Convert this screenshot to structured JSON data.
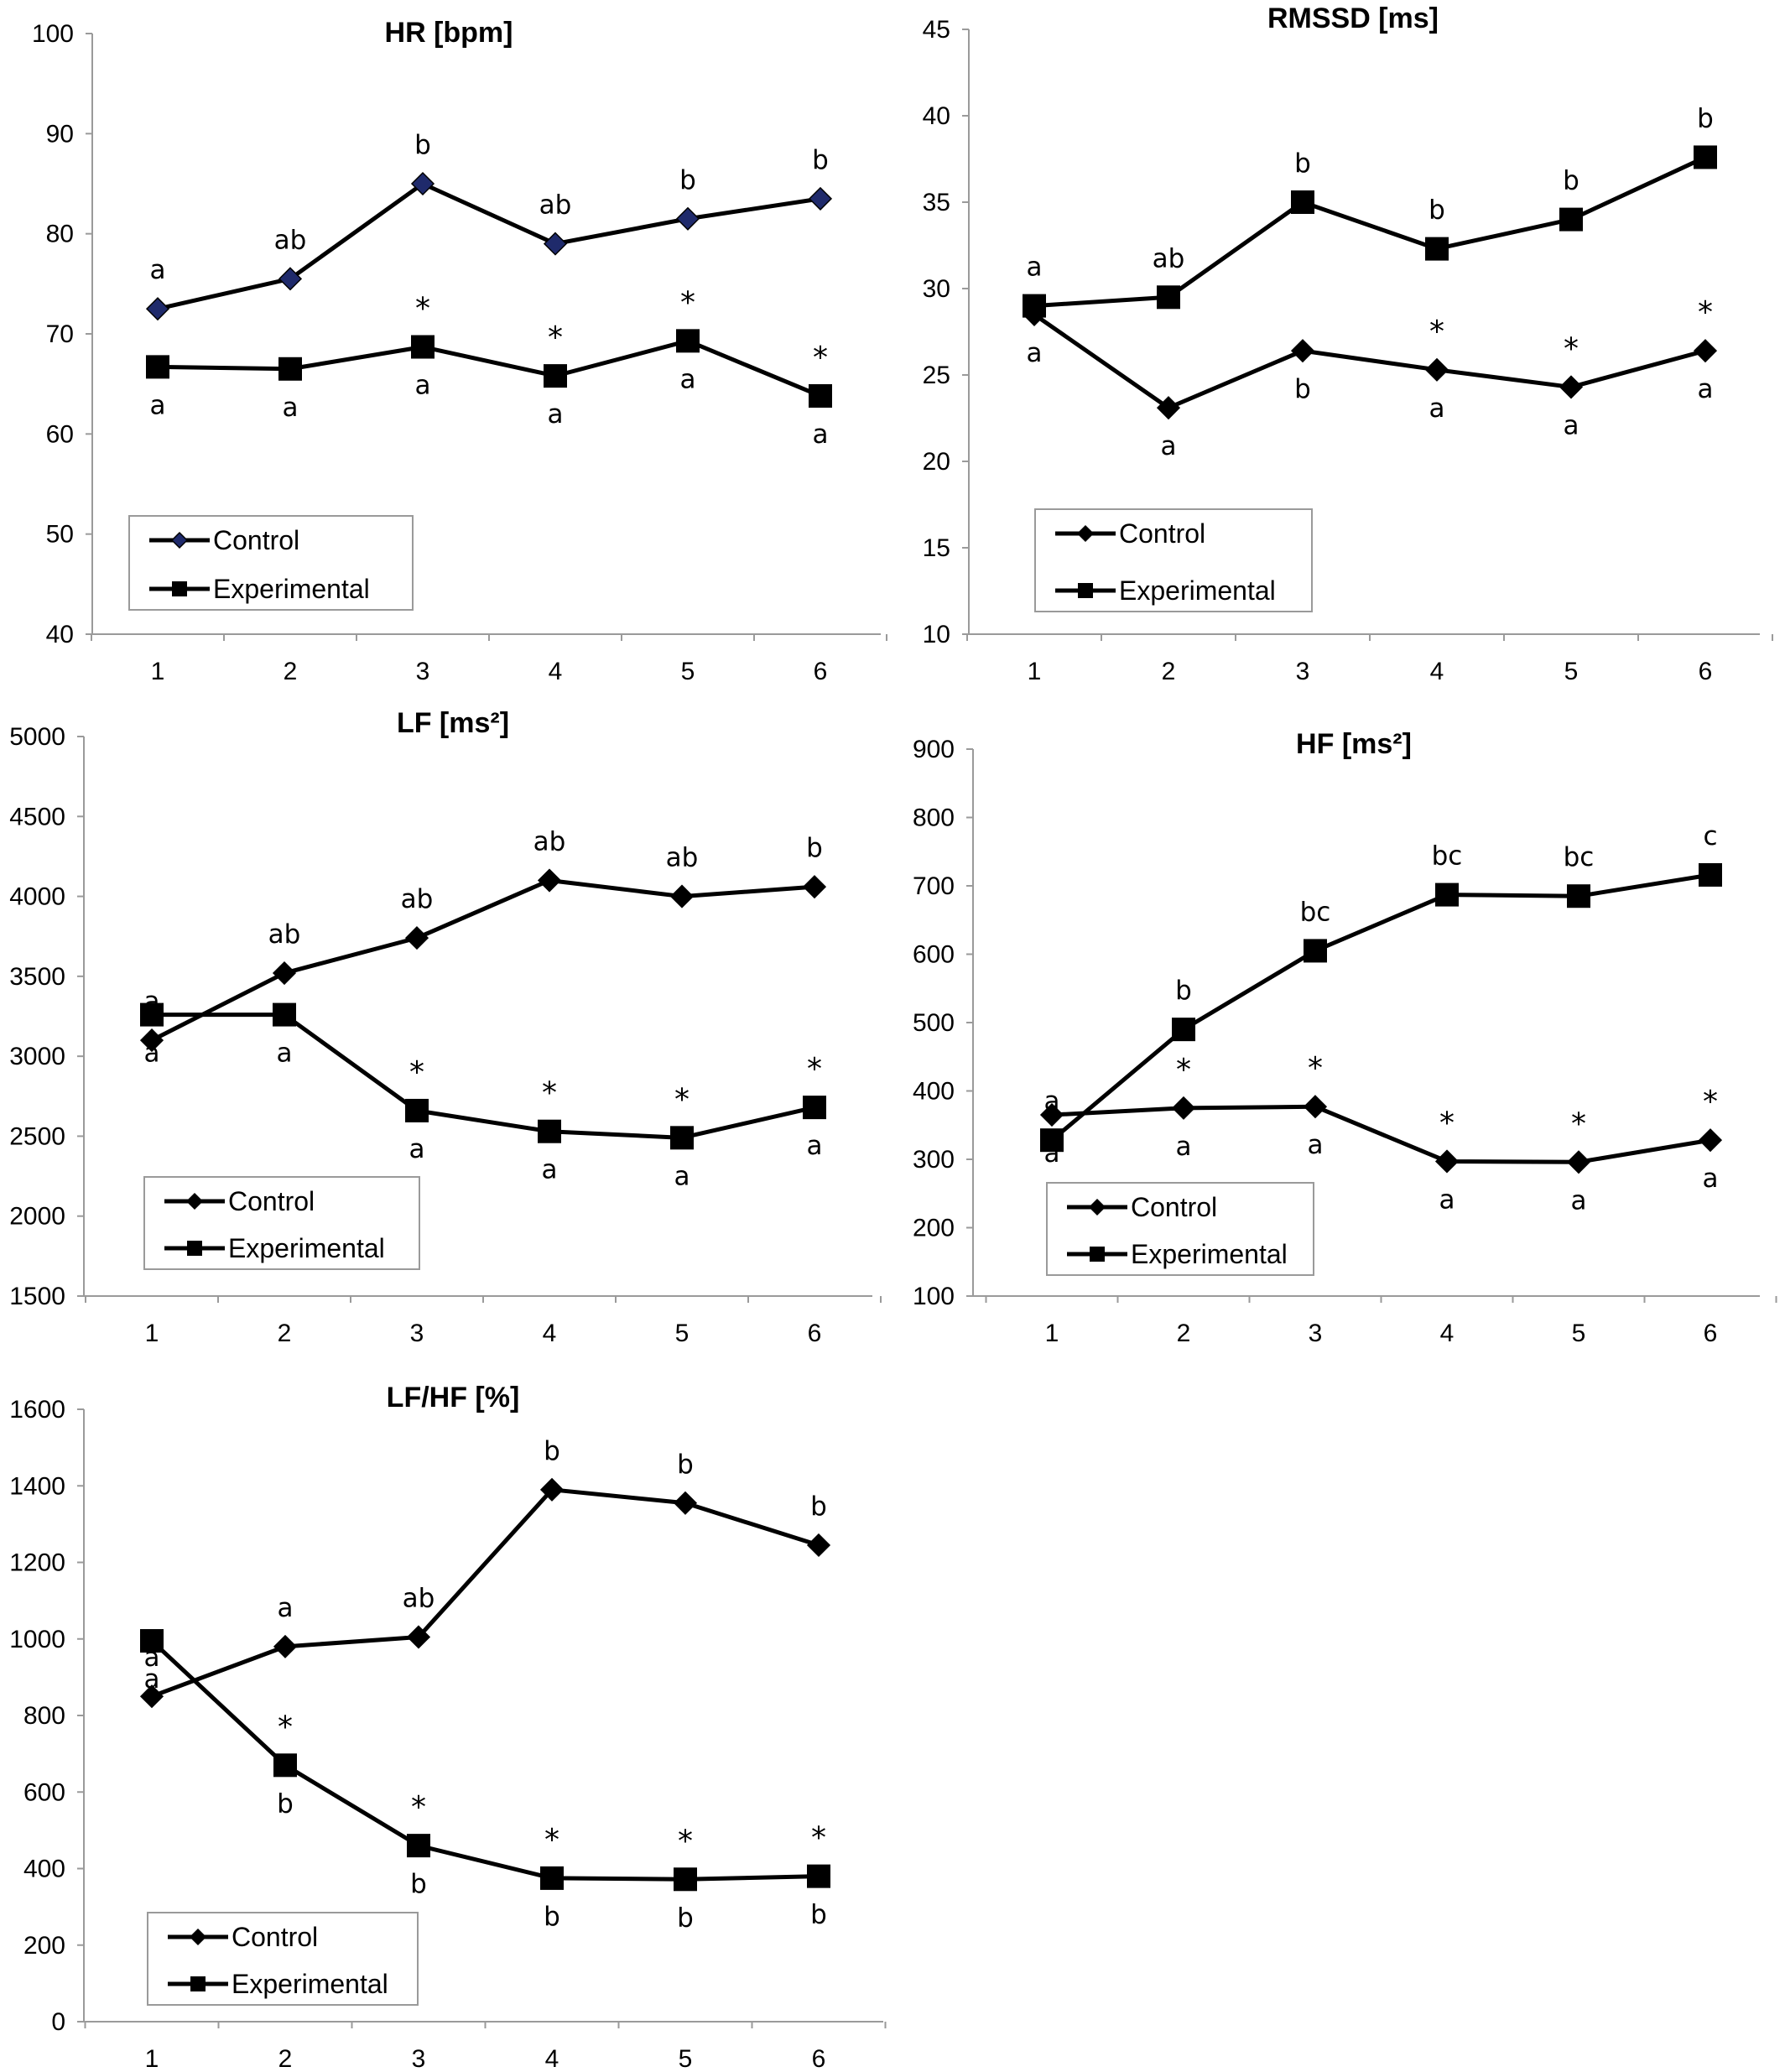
{
  "chart_data": [
    {
      "type": "line",
      "title": "HR [bpm]",
      "categories": [
        "1",
        "2",
        "3",
        "4",
        "5",
        "6"
      ],
      "ylim": [
        40,
        100
      ],
      "yticks": [
        "40",
        "50",
        "60",
        "70",
        "80",
        "90",
        "100"
      ],
      "grid": false,
      "legend_position": "bottom-left",
      "series": [
        {
          "name": "Control",
          "marker": "diamond",
          "marker_color": "#1f2a6b",
          "values": [
            72.5,
            75.5,
            85,
            79,
            81.5,
            83.5
          ],
          "labels": [
            "a",
            "ab",
            "b",
            "ab",
            "b",
            "b"
          ]
        },
        {
          "name": "Experimental",
          "marker": "square",
          "marker_color": "#000000",
          "values": [
            66.7,
            66.5,
            68.7,
            65.8,
            69.3,
            63.8
          ],
          "labels": [
            "a",
            "a",
            "a",
            "a",
            "a",
            "a"
          ],
          "significance": [
            "",
            "",
            "*",
            "*",
            "*",
            "*"
          ]
        }
      ]
    },
    {
      "type": "line",
      "title": "RMSSD [ms]",
      "categories": [
        "1",
        "2",
        "3",
        "4",
        "5",
        "6"
      ],
      "ylim": [
        10,
        45
      ],
      "yticks": [
        "10",
        "15",
        "20",
        "25",
        "30",
        "35",
        "40",
        "45"
      ],
      "grid": false,
      "legend_position": "bottom-left",
      "series": [
        {
          "name": "Control",
          "marker": "diamond",
          "marker_color": "#000000",
          "values": [
            28.5,
            23.1,
            26.4,
            25.3,
            24.3,
            26.4
          ],
          "labels": [
            "a",
            "a",
            "b",
            "a",
            "a",
            "a"
          ],
          "significance": [
            "",
            "",
            "",
            "*",
            "*",
            "*"
          ]
        },
        {
          "name": "Experimental",
          "marker": "square",
          "marker_color": "#000000",
          "values": [
            29,
            29.5,
            35,
            32.3,
            34,
            37.6
          ],
          "labels": [
            "a",
            "ab",
            "b",
            "b",
            "b",
            "b"
          ]
        }
      ]
    },
    {
      "type": "line",
      "title": "LF [ms²]",
      "categories": [
        "1",
        "2",
        "3",
        "4",
        "5",
        "6"
      ],
      "ylim": [
        1500,
        5000
      ],
      "yticks": [
        "1500",
        "2000",
        "2500",
        "3000",
        "3500",
        "4000",
        "4500",
        "5000"
      ],
      "grid": false,
      "legend_position": "bottom-left",
      "series": [
        {
          "name": "Control",
          "marker": "diamond",
          "marker_color": "#000000",
          "values": [
            3100,
            3520,
            3740,
            4100,
            4000,
            4060
          ],
          "labels": [
            "a",
            "ab",
            "ab",
            "ab",
            "ab",
            "b"
          ]
        },
        {
          "name": "Experimental",
          "marker": "square",
          "marker_color": "#000000",
          "values": [
            3260,
            3260,
            2660,
            2530,
            2490,
            2680
          ],
          "labels": [
            "a",
            "a",
            "a",
            "a",
            "a",
            "a"
          ],
          "significance": [
            "",
            "",
            "*",
            "*",
            "*",
            "*"
          ]
        }
      ]
    },
    {
      "type": "line",
      "title": "HF [ms²]",
      "categories": [
        "1",
        "2",
        "3",
        "4",
        "5",
        "6"
      ],
      "ylim": [
        100,
        900
      ],
      "yticks": [
        "100",
        "200",
        "300",
        "400",
        "500",
        "600",
        "700",
        "800",
        "900"
      ],
      "grid": false,
      "legend_position": "bottom-left",
      "series": [
        {
          "name": "Control",
          "marker": "diamond",
          "marker_color": "#000000",
          "values": [
            365,
            375,
            377,
            297,
            296,
            328
          ],
          "labels": [
            "a",
            "a",
            "a",
            "a",
            "a",
            "a"
          ],
          "significance": [
            "",
            "*",
            "*",
            "*",
            "*",
            "*"
          ]
        },
        {
          "name": "Experimental",
          "marker": "square",
          "marker_color": "#000000",
          "values": [
            328,
            490,
            605,
            687,
            685,
            716
          ],
          "labels": [
            "a",
            "b",
            "bc",
            "bc",
            "bc",
            "c"
          ]
        }
      ]
    },
    {
      "type": "line",
      "title": "LF/HF [%]",
      "categories": [
        "1",
        "2",
        "3",
        "4",
        "5",
        "6"
      ],
      "ylim": [
        0,
        1600
      ],
      "yticks": [
        "0",
        "200",
        "400",
        "600",
        "800",
        "1000",
        "1200",
        "1400",
        "1600"
      ],
      "grid": false,
      "legend_position": "bottom-left",
      "series": [
        {
          "name": "Control",
          "marker": "diamond",
          "marker_color": "#000000",
          "values": [
            850,
            980,
            1005,
            1390,
            1355,
            1245
          ],
          "labels": [
            "a",
            "a",
            "ab",
            "b",
            "b",
            "b"
          ]
        },
        {
          "name": "Experimental",
          "marker": "square",
          "marker_color": "#000000",
          "values": [
            995,
            670,
            460,
            375,
            372,
            380
          ],
          "labels": [
            "a",
            "b",
            "b",
            "b",
            "b",
            "b"
          ],
          "significance": [
            "",
            "*",
            "*",
            "*",
            "*",
            "*"
          ]
        }
      ]
    }
  ]
}
